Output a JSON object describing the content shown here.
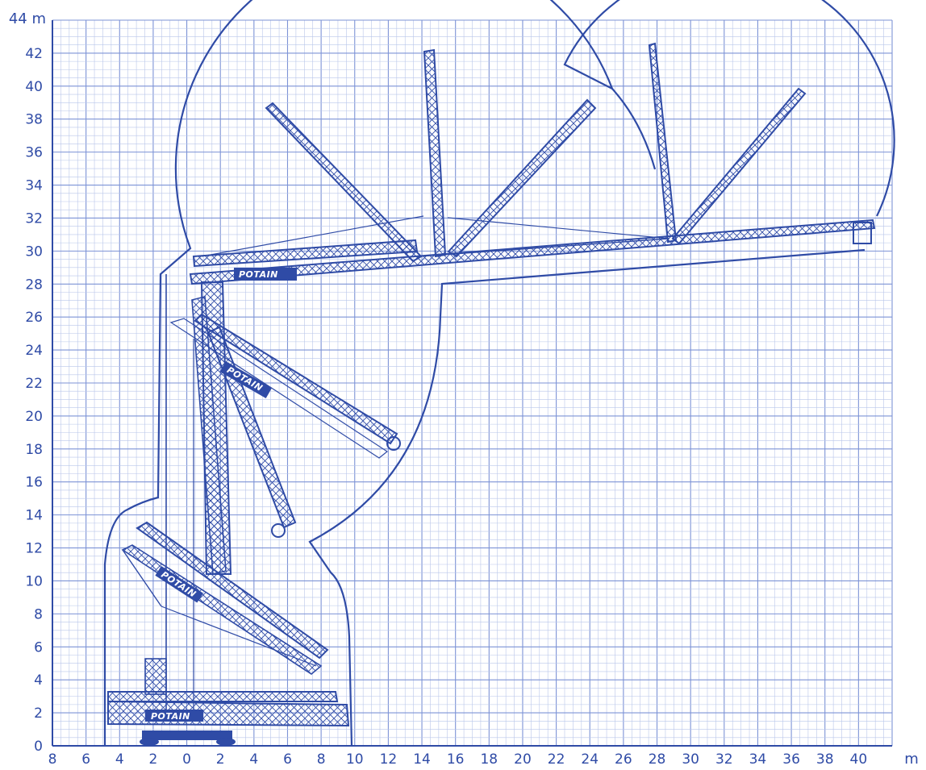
{
  "figure": {
    "x_unit": "m",
    "y_unit": "m",
    "x_tick_labels": [
      "8",
      "6",
      "4",
      "2",
      "0",
      "2",
      "4",
      "6",
      "8",
      "10",
      "12",
      "14",
      "16",
      "18",
      "20",
      "22",
      "24",
      "26",
      "28",
      "30",
      "32",
      "34",
      "36",
      "38",
      "40"
    ],
    "y_tick_labels": [
      "0",
      "2",
      "4",
      "6",
      "8",
      "10",
      "12",
      "14",
      "16",
      "18",
      "20",
      "22",
      "24",
      "26",
      "28",
      "30",
      "32",
      "34",
      "36",
      "38",
      "40",
      "42"
    ],
    "top_y_label": "44",
    "brand_text": "POTAIN",
    "colors": {
      "ink": "#2f4ba6",
      "grid_minor": "#b9c6ea",
      "grid_major": "#7d93d6",
      "background": "#ffffff"
    }
  }
}
